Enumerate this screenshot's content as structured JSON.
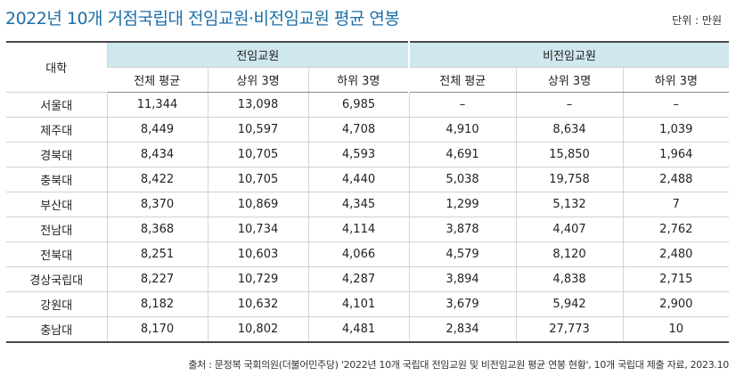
{
  "title": "2022년 10개 거점국립대 전임교원·비전임교원 평균 연봉",
  "unit": "단위 : 만원",
  "table": {
    "row_header": "대학",
    "groups": [
      "전임교원",
      "비전임교원"
    ],
    "subheaders": [
      "전체 평균",
      "상위 3명",
      "하위 3명",
      "전체 평균",
      "상위 3명",
      "하위 3명"
    ],
    "rows": [
      {
        "name": "서울대",
        "values": [
          "11,344",
          "13,098",
          "6,985",
          "–",
          "–",
          "–"
        ]
      },
      {
        "name": "제주대",
        "values": [
          "8,449",
          "10,597",
          "4,708",
          "4,910",
          "8,634",
          "1,039"
        ]
      },
      {
        "name": "경북대",
        "values": [
          "8,434",
          "10,705",
          "4,593",
          "4,691",
          "15,850",
          "1,964"
        ]
      },
      {
        "name": "충북대",
        "values": [
          "8,422",
          "10,705",
          "4,440",
          "5,038",
          "19,758",
          "2,488"
        ]
      },
      {
        "name": "부산대",
        "values": [
          "8,370",
          "10,869",
          "4,345",
          "1,299",
          "5,132",
          "7"
        ]
      },
      {
        "name": "전남대",
        "values": [
          "8,368",
          "10,734",
          "4,114",
          "3,878",
          "4,407",
          "2,762"
        ]
      },
      {
        "name": "전북대",
        "values": [
          "8,251",
          "10,603",
          "4,066",
          "4,579",
          "8,120",
          "2,480"
        ]
      },
      {
        "name": "경상국립대",
        "values": [
          "8,227",
          "10,729",
          "4,287",
          "3,894",
          "4,838",
          "2,715"
        ]
      },
      {
        "name": "강원대",
        "values": [
          "8,182",
          "10,632",
          "4,101",
          "3,679",
          "5,942",
          "2,900"
        ]
      },
      {
        "name": "충남대",
        "values": [
          "8,170",
          "10,802",
          "4,481",
          "2,834",
          "27,773",
          "10"
        ]
      }
    ]
  },
  "source": "출처 : 문정복 국회의원(더불어민주당) '2022년 10개 국립대 전임교원 및 비전임교원 평균 연봉 현황', 10개 국립대 제출 자료, 2023.10"
}
